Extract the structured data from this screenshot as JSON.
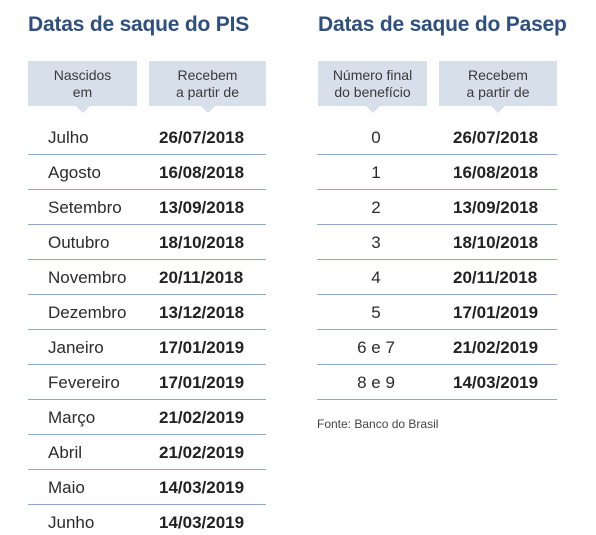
{
  "pis": {
    "title": "Datas de saque do PIS",
    "col1_line1": "Nascidos",
    "col1_line2": "em",
    "col2_line1": "Recebem",
    "col2_line2": "a partir de",
    "rows": [
      {
        "label": "Julho",
        "date": "26/07/2018"
      },
      {
        "label": "Agosto",
        "date": "16/08/2018"
      },
      {
        "label": "Setembro",
        "date": "13/09/2018"
      },
      {
        "label": "Outubro",
        "date": "18/10/2018"
      },
      {
        "label": "Novembro",
        "date": "20/11/2018"
      },
      {
        "label": "Dezembro",
        "date": "13/12/2018"
      },
      {
        "label": "Janeiro",
        "date": "17/01/2019"
      },
      {
        "label": "Fevereiro",
        "date": "17/01/2019"
      },
      {
        "label": "Março",
        "date": "21/02/2019"
      },
      {
        "label": "Abril",
        "date": "21/02/2019"
      },
      {
        "label": "Maio",
        "date": "14/03/2019"
      },
      {
        "label": "Junho",
        "date": "14/03/2019"
      }
    ]
  },
  "pasep": {
    "title": "Datas de saque do Pasep",
    "col1_line1": "Número final",
    "col1_line2": "do benefício",
    "col2_line1": "Recebem",
    "col2_line2": "a partir de",
    "rows": [
      {
        "label": "0",
        "date": "26/07/2018"
      },
      {
        "label": "1",
        "date": "16/08/2018"
      },
      {
        "label": "2",
        "date": "13/09/2018"
      },
      {
        "label": "3",
        "date": "18/10/2018"
      },
      {
        "label": "4",
        "date": "20/11/2018"
      },
      {
        "label": "5",
        "date": "17/01/2019"
      },
      {
        "label": "6 e 7",
        "date": "21/02/2019"
      },
      {
        "label": "8 e 9",
        "date": "14/03/2019"
      }
    ],
    "source": "Fonte: Banco do Brasil"
  },
  "colors": {
    "title": "#2f4f7e",
    "header_bg": "#d7dfeb",
    "row_divider": "#8fa9c6"
  }
}
